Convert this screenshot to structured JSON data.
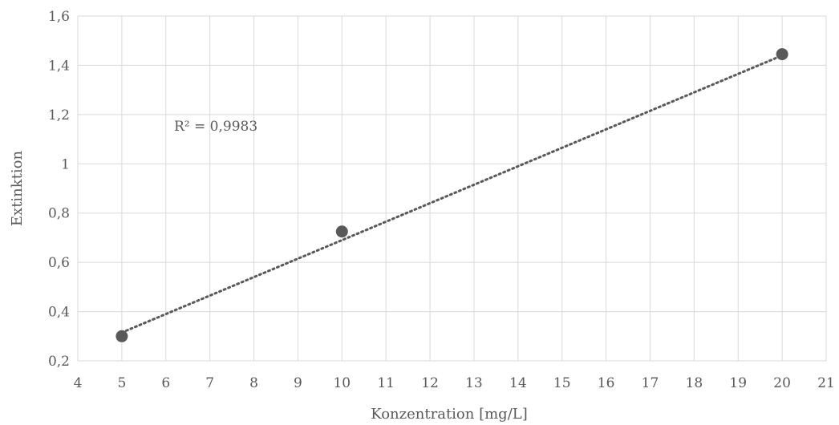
{
  "chart_data": {
    "type": "scatter",
    "title": "",
    "xlabel": "Konzentration [mg/L]",
    "ylabel": "Extinktion",
    "xlim": [
      4,
      21
    ],
    "ylim": [
      0.2,
      1.6
    ],
    "x_ticks": [
      4,
      5,
      6,
      7,
      8,
      9,
      10,
      11,
      12,
      13,
      14,
      15,
      16,
      17,
      18,
      19,
      20,
      21
    ],
    "y_ticks": [
      0.2,
      0.4,
      0.6,
      0.8,
      1.0,
      1.2,
      1.4,
      1.6
    ],
    "y_tick_labels": [
      "0,2",
      "0,4",
      "0,6",
      "0,8",
      "1",
      "1,2",
      "1,4",
      "1,6"
    ],
    "grid": true,
    "legend": "none",
    "series": [
      {
        "x": [
          5,
          10,
          20
        ],
        "y": [
          0.3,
          0.725,
          1.445
        ]
      }
    ],
    "trendline": {
      "type": "linear",
      "x": [
        5,
        20
      ],
      "y": [
        0.315,
        1.44
      ],
      "style": "dotted"
    },
    "annotations": [
      {
        "text": "R² = 0,9983"
      }
    ],
    "colors": {
      "marker": "#595959",
      "grid": "#d9d9d9",
      "text": "#595959"
    }
  }
}
